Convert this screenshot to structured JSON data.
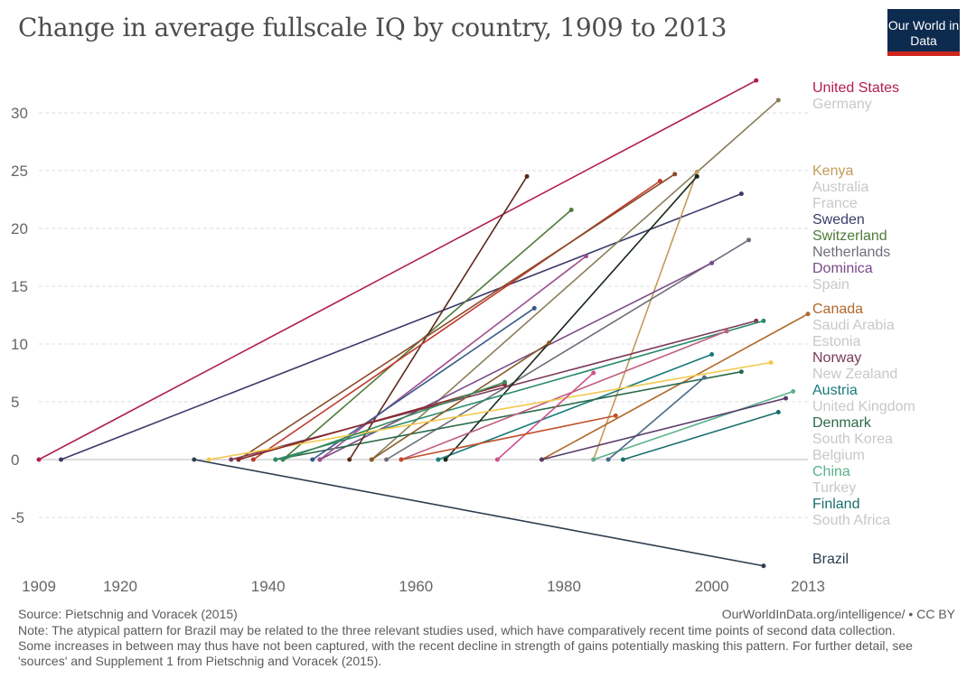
{
  "header": {
    "title": "Change in average fullscale IQ by country, 1909 to 2013",
    "logo_text": "Our World in Data"
  },
  "footer": {
    "source": "Source: Pietschnig and Voracek (2015)",
    "site": "OurWorldInData.org/intelligence/ • CC BY",
    "note": "Note: The atypical pattern for Brazil may be related to the three relevant studies used, which have comparatively recent time points of second data collection. Some increases in between may thus have not been captured, with the recent decline in strength of gains potentially masking this pattern. For further detail, see 'sources' and Supplement 1 from Pietschnig and Voracek (2015)."
  },
  "chart_data": {
    "type": "line",
    "title": "Change in average fullscale IQ by country, 1909 to 2013",
    "xlim": [
      1909,
      2013
    ],
    "ylim": [
      -9.5,
      33
    ],
    "x_ticks": [
      "1909",
      "1920",
      "1940",
      "1960",
      "1980",
      "2000",
      "2013"
    ],
    "y_ticks": [
      "-5",
      "0",
      "5",
      "10",
      "15",
      "20",
      "25",
      "30"
    ],
    "grid": "horizontal dashed",
    "series": [
      {
        "name": "United States",
        "color": "#b01e4e",
        "x": [
          1909,
          2006
        ],
        "y": [
          0,
          32.8
        ]
      },
      {
        "name": "Sweden",
        "color": "#3b3b6b",
        "x": [
          1912,
          2004
        ],
        "y": [
          0,
          23.0
        ]
      },
      {
        "name": "Brazil",
        "color": "#2c3e50",
        "x": [
          1930,
          2007
        ],
        "y": [
          0,
          -9.2
        ]
      },
      {
        "name": "Germany",
        "color": "#8a7f5a",
        "x": [
          1954,
          2009
        ],
        "y": [
          0,
          31.1
        ]
      },
      {
        "name": "Kenya",
        "color": "#c49a5a",
        "x": [
          1984,
          1998
        ],
        "y": [
          0,
          24.9
        ]
      },
      {
        "name": "Switzerland",
        "color": "#4f7a3a",
        "x": [
          1942,
          1981
        ],
        "y": [
          0,
          21.6
        ]
      },
      {
        "name": "Netherlands",
        "color": "#6e6e7a",
        "x": [
          1956,
          2005
        ],
        "y": [
          0,
          19.0
        ]
      },
      {
        "name": "Dominica",
        "color": "#7a4a8a",
        "x": [
          1947,
          2000
        ],
        "y": [
          0,
          17.0
        ]
      },
      {
        "name": "Canada",
        "color": "#b0682a",
        "x": [
          1977,
          2013
        ],
        "y": [
          0,
          12.6
        ]
      },
      {
        "name": "Norway",
        "color": "#7a3a5a",
        "x": [
          1935,
          2006
        ],
        "y": [
          0,
          12.0
        ]
      },
      {
        "name": "Austria",
        "color": "#1a7a7a",
        "x": [
          1963,
          2000
        ],
        "y": [
          0,
          9.1
        ]
      },
      {
        "name": "Denmark",
        "color": "#2a6a4a",
        "x": [
          1941,
          2004
        ],
        "y": [
          0,
          7.6
        ]
      },
      {
        "name": "China",
        "color": "#5ab08a",
        "x": [
          1984,
          2011
        ],
        "y": [
          0,
          5.9
        ]
      },
      {
        "name": "Finland",
        "color": "#1a6e6e",
        "x": [
          1988,
          2009
        ],
        "y": [
          0,
          4.1
        ]
      },
      {
        "color": "#5a2a1a",
        "x": [
          1951,
          1975
        ],
        "y": [
          0,
          24.5
        ]
      },
      {
        "color": "#c0392b",
        "x": [
          1938,
          1993
        ],
        "y": [
          0,
          24.1
        ]
      },
      {
        "color": "#8a4a2a",
        "x": [
          1936,
          1995
        ],
        "y": [
          0,
          24.7
        ]
      },
      {
        "color": "#1a2a1a",
        "x": [
          1964,
          1998
        ],
        "y": [
          0,
          24.5
        ]
      },
      {
        "color": "#a05090",
        "x": [
          1947,
          1983
        ],
        "y": [
          0,
          17.6
        ]
      },
      {
        "color": "#3a5a8a",
        "x": [
          1946,
          1976
        ],
        "y": [
          0,
          13.1
        ]
      },
      {
        "color": "#2a8a6a",
        "x": [
          1941,
          2007
        ],
        "y": [
          0,
          12.0
        ]
      },
      {
        "color": "#c06080",
        "x": [
          1958,
          2002
        ],
        "y": [
          0,
          11.1
        ]
      },
      {
        "color": "#8a5a2a",
        "x": [
          1954,
          1978
        ],
        "y": [
          0,
          10.1
        ]
      },
      {
        "color": "#f2c94c",
        "x": [
          1932,
          2008
        ],
        "y": [
          0,
          8.4
        ]
      },
      {
        "color": "#4a6a8a",
        "x": [
          1986,
          1999
        ],
        "y": [
          0,
          7.1
        ]
      },
      {
        "color": "#d0508a",
        "x": [
          1971,
          1984
        ],
        "y": [
          0,
          7.5
        ]
      },
      {
        "color": "#8a2a2a",
        "x": [
          1936,
          1972
        ],
        "y": [
          0,
          6.5
        ]
      },
      {
        "color": "#3a8a5a",
        "x": [
          1942,
          1972
        ],
        "y": [
          0,
          6.7
        ]
      },
      {
        "color": "#c0502a",
        "x": [
          1958,
          1987
        ],
        "y": [
          0,
          3.8
        ]
      },
      {
        "color": "#5a3a6a",
        "x": [
          1977,
          2010
        ],
        "y": [
          0,
          5.3
        ]
      }
    ],
    "faded_labels": [
      "Australia",
      "France",
      "Spain",
      "Saudi Arabia",
      "Estonia",
      "New Zealand",
      "United Kingdom",
      "South Korea",
      "Belgium",
      "Turkey",
      "South Africa"
    ]
  }
}
